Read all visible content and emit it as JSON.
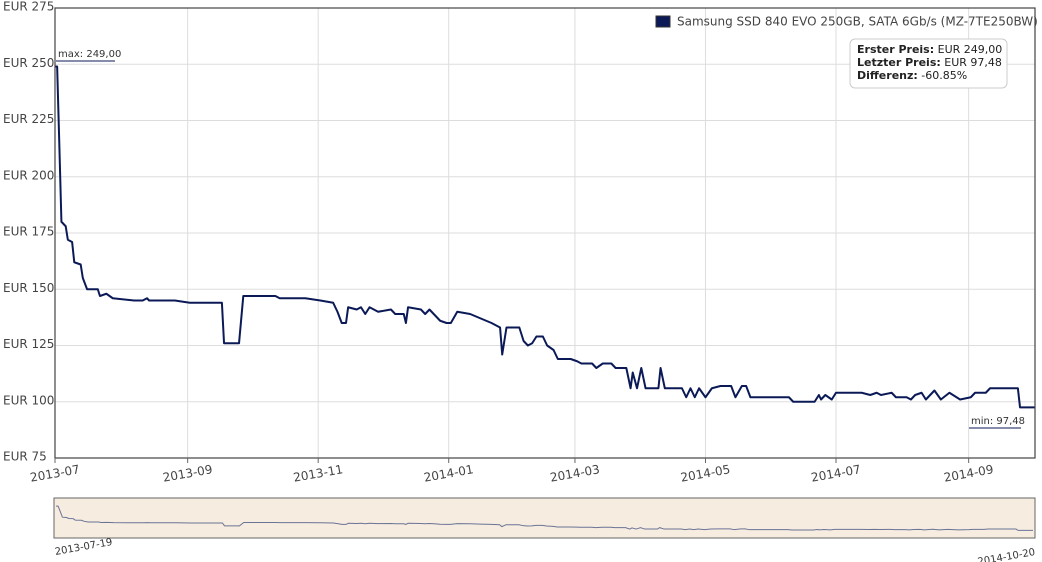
{
  "chart_data": {
    "type": "line",
    "x": [
      "2013-07-01",
      "2013-07-02",
      "2013-07-03",
      "2013-07-04",
      "2013-07-06",
      "2013-07-07",
      "2013-07-09",
      "2013-07-10",
      "2013-07-13",
      "2013-07-14",
      "2013-07-16",
      "2013-07-21",
      "2013-07-22",
      "2013-07-25",
      "2013-07-28",
      "2013-08-07",
      "2013-08-11",
      "2013-08-13",
      "2013-08-14",
      "2013-08-26",
      "2013-09-02",
      "2013-09-17",
      "2013-09-18",
      "2013-09-25",
      "2013-09-27",
      "2013-10-12",
      "2013-10-14",
      "2013-10-26",
      "2013-11-02",
      "2013-11-08",
      "2013-11-10",
      "2013-11-12",
      "2013-11-14",
      "2013-11-15",
      "2013-11-19",
      "2013-11-21",
      "2013-11-23",
      "2013-11-25",
      "2013-11-29",
      "2013-12-05",
      "2013-12-07",
      "2013-12-11",
      "2013-12-12",
      "2013-12-13",
      "2013-12-19",
      "2013-12-21",
      "2013-12-23",
      "2013-12-26",
      "2013-12-28",
      "2013-12-31",
      "2014-01-02",
      "2014-01-05",
      "2014-01-11",
      "2014-01-16",
      "2014-01-21",
      "2014-01-25",
      "2014-01-26",
      "2014-01-28",
      "2014-02-03",
      "2014-02-05",
      "2014-02-07",
      "2014-02-09",
      "2014-02-11",
      "2014-02-14",
      "2014-02-16",
      "2014-02-19",
      "2014-02-21",
      "2014-02-27",
      "2014-03-02",
      "2014-03-04",
      "2014-03-09",
      "2014-03-11",
      "2014-03-14",
      "2014-03-18",
      "2014-03-20",
      "2014-03-25",
      "2014-03-27",
      "2014-03-28",
      "2014-03-30",
      "2014-04-01",
      "2014-04-03",
      "2014-04-09",
      "2014-04-10",
      "2014-04-12",
      "2014-04-20",
      "2014-04-22",
      "2014-04-24",
      "2014-04-26",
      "2014-04-28",
      "2014-05-01",
      "2014-05-04",
      "2014-05-08",
      "2014-05-13",
      "2014-05-15",
      "2014-05-18",
      "2014-05-20",
      "2014-05-22",
      "2014-06-09",
      "2014-06-11",
      "2014-06-21",
      "2014-06-23",
      "2014-06-24",
      "2014-06-26",
      "2014-06-29",
      "2014-07-01",
      "2014-07-07",
      "2014-07-13",
      "2014-07-17",
      "2014-07-20",
      "2014-07-22",
      "2014-07-27",
      "2014-07-29",
      "2014-08-03",
      "2014-08-05",
      "2014-08-07",
      "2014-08-10",
      "2014-08-12",
      "2014-08-16",
      "2014-08-19",
      "2014-08-23",
      "2014-08-28",
      "2014-09-02",
      "2014-09-04",
      "2014-09-09",
      "2014-09-11",
      "2014-09-16",
      "2014-09-24",
      "2014-09-25",
      "2014-10-02"
    ],
    "series": [
      {
        "name": "Samsung SSD 840 EVO 250GB, SATA 6Gb/s (MZ-7TE250BW)",
        "color": "#0b1a57",
        "values": [
          249,
          249,
          215,
          180,
          178,
          172,
          171,
          162,
          161,
          155,
          150,
          150,
          147,
          148,
          146,
          145,
          145,
          146,
          145,
          145,
          144,
          144,
          126,
          126,
          147,
          147,
          146,
          146,
          145,
          144,
          140,
          135,
          135,
          142,
          141,
          142,
          139,
          142,
          140,
          141,
          139,
          139,
          135,
          142,
          141,
          139,
          141,
          138,
          136,
          135,
          135,
          140,
          139,
          137,
          135,
          133,
          121,
          133,
          133,
          127,
          125,
          126,
          129,
          129,
          125,
          123,
          119,
          119,
          118,
          117,
          117,
          115,
          117,
          117,
          115,
          115,
          106,
          113,
          106,
          115,
          106,
          106,
          115,
          106,
          106,
          102,
          106,
          102,
          106,
          102,
          106,
          107,
          107,
          102,
          107,
          107,
          102,
          102,
          100,
          100,
          103,
          101,
          103,
          101,
          104,
          104,
          104,
          103,
          104,
          103,
          104,
          102,
          102,
          101,
          103,
          104,
          101,
          105,
          101,
          104,
          101,
          102,
          104,
          104,
          106,
          106,
          106,
          97.48,
          97.48
        ]
      }
    ],
    "xlim": [
      "2013-07-01",
      "2014-10-02"
    ],
    "xticks": [
      "2013-07",
      "2013-09",
      "2013-11",
      "2014-01",
      "2014-03",
      "2014-05",
      "2014-07",
      "2014-09"
    ],
    "ylim": [
      75,
      275
    ],
    "yticks": [
      {
        "value": 75,
        "label": "EUR 75"
      },
      {
        "value": 100,
        "label": "EUR 100"
      },
      {
        "value": 125,
        "label": "EUR 125"
      },
      {
        "value": 150,
        "label": "EUR 150"
      },
      {
        "value": 175,
        "label": "EUR 175"
      },
      {
        "value": 200,
        "label": "EUR 200"
      },
      {
        "value": 225,
        "label": "EUR 225"
      },
      {
        "value": 250,
        "label": "EUR 250"
      },
      {
        "value": 275,
        "label": "EUR 275"
      }
    ],
    "grid": true,
    "annotations": {
      "max": "max: 249,00",
      "min": "min: 97,48"
    },
    "info_box": [
      {
        "label": "Erster Preis:",
        "value": "EUR 249,00"
      },
      {
        "label": "Letzter Preis:",
        "value": "EUR 97,48"
      },
      {
        "label": "Differenz:",
        "value": "-60.85%"
      }
    ],
    "navigator": {
      "start": "2013-07-19",
      "end": "2014-10-20"
    }
  }
}
